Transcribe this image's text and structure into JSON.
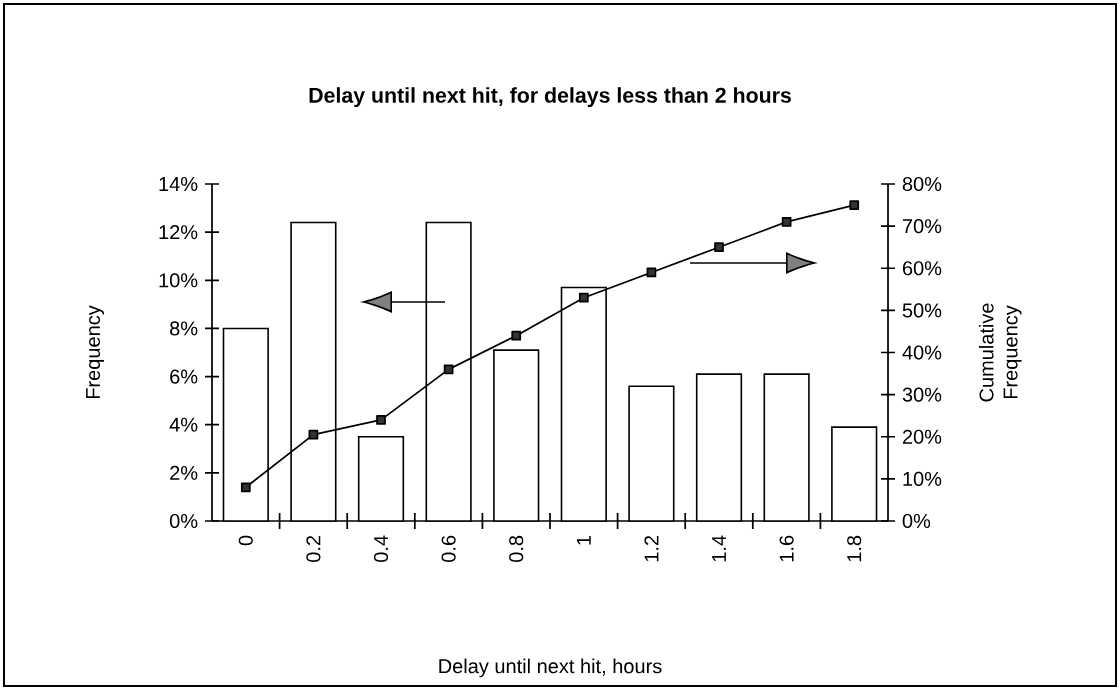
{
  "chart_data": {
    "type": "bar",
    "title": "Delay until next hit, for delays less than 2 hours",
    "xlabel": "Delay until next hit, hours",
    "ylabel": "Frequency",
    "y2label": "Cumulative Frequency",
    "categories": [
      "0",
      "0.2",
      "0.4",
      "0.6",
      "0.8",
      "1",
      "1.2",
      "1.4",
      "1.6",
      "1.8"
    ],
    "series": [
      {
        "color": "#ffffff",
        "values": [
          8.0,
          12.4,
          3.5,
          12.4,
          7.1,
          9.7,
          5.6,
          6.1,
          6.1,
          3.9
        ]
      },
      {
        "type": "line",
        "axis": "y2",
        "color": "#000000",
        "marker": "square",
        "line_style": "solid",
        "values": [
          8,
          20.5,
          24,
          36,
          44,
          53,
          59,
          65,
          71,
          75
        ]
      }
    ],
    "ylim": [
      0,
      14
    ],
    "yticks": [
      {
        "value": 0,
        "label": "0%"
      },
      {
        "value": 2,
        "label": "2%"
      },
      {
        "value": 4,
        "label": "4%"
      },
      {
        "value": 6,
        "label": "6%"
      },
      {
        "value": 8,
        "label": "8%"
      },
      {
        "value": 10,
        "label": "10%"
      },
      {
        "value": 12,
        "label": "12%"
      },
      {
        "value": 14,
        "label": "14%"
      }
    ],
    "y2lim": [
      0,
      80
    ],
    "y2ticks": [
      {
        "value": 0,
        "label": "0%"
      },
      {
        "value": 10,
        "label": "10%"
      },
      {
        "value": 20,
        "label": "20%"
      },
      {
        "value": 30,
        "label": "30%"
      },
      {
        "value": 40,
        "label": "40%"
      },
      {
        "value": 50,
        "label": "50%"
      },
      {
        "value": 60,
        "label": "60%"
      },
      {
        "value": 70,
        "label": "70%"
      },
      {
        "value": 80,
        "label": "80%"
      }
    ]
  }
}
